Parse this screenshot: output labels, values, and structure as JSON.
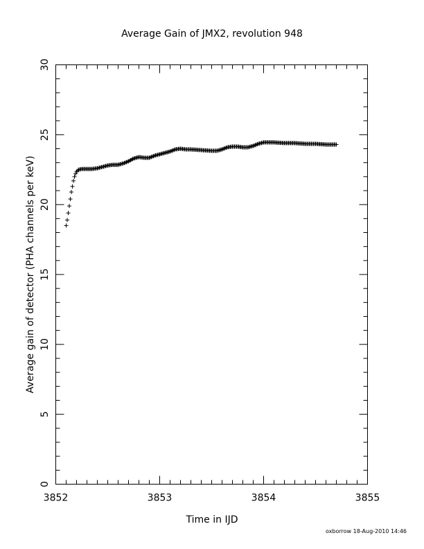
{
  "chart_data": {
    "type": "scatter",
    "marker": "plus",
    "title": "Average Gain of JMX2, revolution 948",
    "xlabel": "Time in IJD",
    "ylabel": "Average gain of detector (PHA channels per keV)",
    "xlim": [
      3852,
      3855
    ],
    "ylim": [
      0,
      30
    ],
    "x_ticks": [
      "3852",
      "3853",
      "3854",
      "3855"
    ],
    "y_ticks": [
      "0",
      "5",
      "10",
      "15",
      "20",
      "25",
      "30"
    ],
    "grid": false,
    "legend": "none",
    "series": [
      {
        "points": [
          [
            3852.1,
            18.5
          ],
          [
            3852.11,
            18.9
          ],
          [
            3852.12,
            19.4
          ],
          [
            3852.13,
            19.9
          ],
          [
            3852.14,
            20.4
          ],
          [
            3852.15,
            20.9
          ],
          [
            3852.16,
            21.3
          ],
          [
            3852.17,
            21.7
          ],
          [
            3852.18,
            22.0
          ],
          [
            3852.19,
            22.2
          ],
          [
            3852.2,
            22.35
          ],
          [
            3852.22,
            22.5
          ],
          [
            3852.25,
            22.55
          ],
          [
            3852.3,
            22.55
          ],
          [
            3852.35,
            22.55
          ],
          [
            3852.4,
            22.6
          ],
          [
            3852.45,
            22.7
          ],
          [
            3852.5,
            22.8
          ],
          [
            3852.55,
            22.85
          ],
          [
            3852.6,
            22.85
          ],
          [
            3852.65,
            22.95
          ],
          [
            3852.7,
            23.1
          ],
          [
            3852.75,
            23.3
          ],
          [
            3852.8,
            23.4
          ],
          [
            3852.85,
            23.35
          ],
          [
            3852.9,
            23.35
          ],
          [
            3852.95,
            23.5
          ],
          [
            3853.0,
            23.6
          ],
          [
            3853.05,
            23.7
          ],
          [
            3853.1,
            23.8
          ],
          [
            3853.15,
            23.95
          ],
          [
            3853.2,
            24.0
          ],
          [
            3853.25,
            23.95
          ],
          [
            3853.3,
            23.95
          ],
          [
            3853.4,
            23.9
          ],
          [
            3853.5,
            23.85
          ],
          [
            3853.55,
            23.85
          ],
          [
            3853.6,
            23.95
          ],
          [
            3853.65,
            24.1
          ],
          [
            3853.7,
            24.15
          ],
          [
            3853.75,
            24.15
          ],
          [
            3853.8,
            24.1
          ],
          [
            3853.85,
            24.1
          ],
          [
            3853.9,
            24.2
          ],
          [
            3853.95,
            24.35
          ],
          [
            3854.0,
            24.45
          ],
          [
            3854.05,
            24.45
          ],
          [
            3854.1,
            24.45
          ],
          [
            3854.2,
            24.4
          ],
          [
            3854.3,
            24.4
          ],
          [
            3854.4,
            24.35
          ],
          [
            3854.5,
            24.35
          ],
          [
            3854.6,
            24.3
          ],
          [
            3854.7,
            24.3
          ]
        ]
      }
    ],
    "colors": {
      "marks": "#000000",
      "axes": "#000000",
      "background": "#ffffff"
    }
  },
  "footer": {
    "credit": "oxborrow 18-Aug-2010 14:46"
  }
}
